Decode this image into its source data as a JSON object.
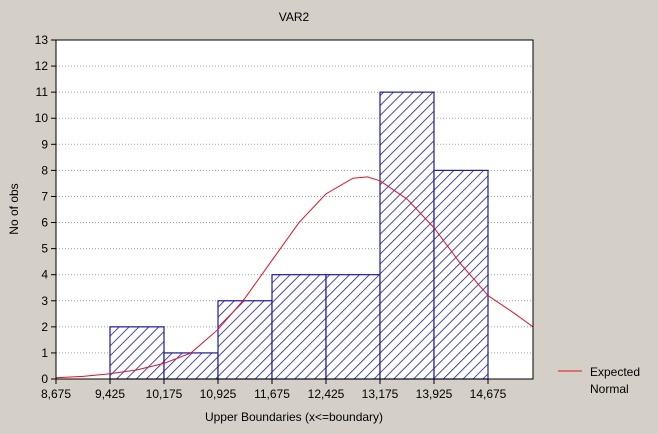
{
  "chart_data": {
    "type": "bar",
    "title": "VAR2",
    "xlabel": "Upper Boundaries (x<=boundary)",
    "ylabel": "No of obs",
    "x_ticks": [
      "8,675",
      "9,425",
      "10,175",
      "10,925",
      "11,675",
      "12,425",
      "13,175",
      "13,925",
      "14,675"
    ],
    "x_range": [
      8675,
      15300
    ],
    "ylim": [
      0,
      13
    ],
    "y_ticks": [
      "0",
      "1",
      "2",
      "3",
      "4",
      "5",
      "6",
      "7",
      "8",
      "9",
      "10",
      "11",
      "12",
      "13"
    ],
    "grid": true,
    "bins": [
      {
        "lower": 9425,
        "upper": 10175,
        "count": 2
      },
      {
        "lower": 10175,
        "upper": 10925,
        "count": 1
      },
      {
        "lower": 10925,
        "upper": 11675,
        "count": 3
      },
      {
        "lower": 11675,
        "upper": 12425,
        "count": 4
      },
      {
        "lower": 12425,
        "upper": 13175,
        "count": 4
      },
      {
        "lower": 13175,
        "upper": 13925,
        "count": 11
      },
      {
        "lower": 13925,
        "upper": 14675,
        "count": 8
      }
    ],
    "expected_normal": {
      "x": [
        8675,
        9050,
        9425,
        9800,
        10175,
        10550,
        10925,
        11300,
        11675,
        12050,
        12425,
        12800,
        13000,
        13175,
        13550,
        13925,
        14300,
        14675,
        15050,
        15300
      ],
      "y": [
        0.05,
        0.1,
        0.2,
        0.35,
        0.6,
        1.0,
        1.9,
        3.1,
        4.55,
        6.0,
        7.1,
        7.7,
        7.75,
        7.6,
        6.9,
        5.8,
        4.4,
        3.2,
        2.5,
        2.0
      ]
    },
    "bar_color": "#1a1aa8",
    "curve_color": "#e8101c",
    "legend": {
      "placement": "right",
      "lines": [
        "Expected",
        "Normal"
      ]
    }
  }
}
